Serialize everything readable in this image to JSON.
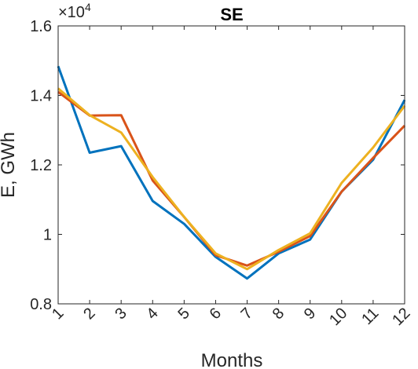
{
  "chart_data": {
    "type": "line",
    "title": "SE",
    "xlabel": "Months",
    "ylabel": "E, GWh",
    "exponent_base": "×10",
    "exponent_power": "4",
    "x": [
      1,
      2,
      3,
      4,
      5,
      6,
      7,
      8,
      9,
      10,
      11,
      12
    ],
    "x_tick_labels": [
      "1",
      "2",
      "3",
      "4",
      "5",
      "6",
      "7",
      "8",
      "9",
      "10",
      "11",
      "12"
    ],
    "xlim": [
      1,
      12
    ],
    "ylim": [
      0.8,
      1.6
    ],
    "y_ticks": [
      0.8,
      1.0,
      1.2,
      1.4,
      1.6
    ],
    "y_tick_labels": [
      "0.8",
      "1",
      "1.2",
      "1.4",
      "1.6"
    ],
    "grid": false,
    "series": [
      {
        "color": "#0072BD",
        "values": [
          1.484,
          1.235,
          1.254,
          1.096,
          1.03,
          0.935,
          0.873,
          0.945,
          0.985,
          1.123,
          1.215,
          1.387
        ]
      },
      {
        "color": "#D95319",
        "values": [
          1.41,
          1.342,
          1.343,
          1.155,
          1.05,
          0.94,
          0.91,
          0.95,
          0.995,
          1.123,
          1.22,
          1.313
        ]
      },
      {
        "color": "#EDB120",
        "values": [
          1.42,
          1.343,
          1.293,
          1.165,
          1.05,
          0.945,
          0.9,
          0.955,
          1.003,
          1.148,
          1.25,
          1.37
        ]
      }
    ]
  }
}
